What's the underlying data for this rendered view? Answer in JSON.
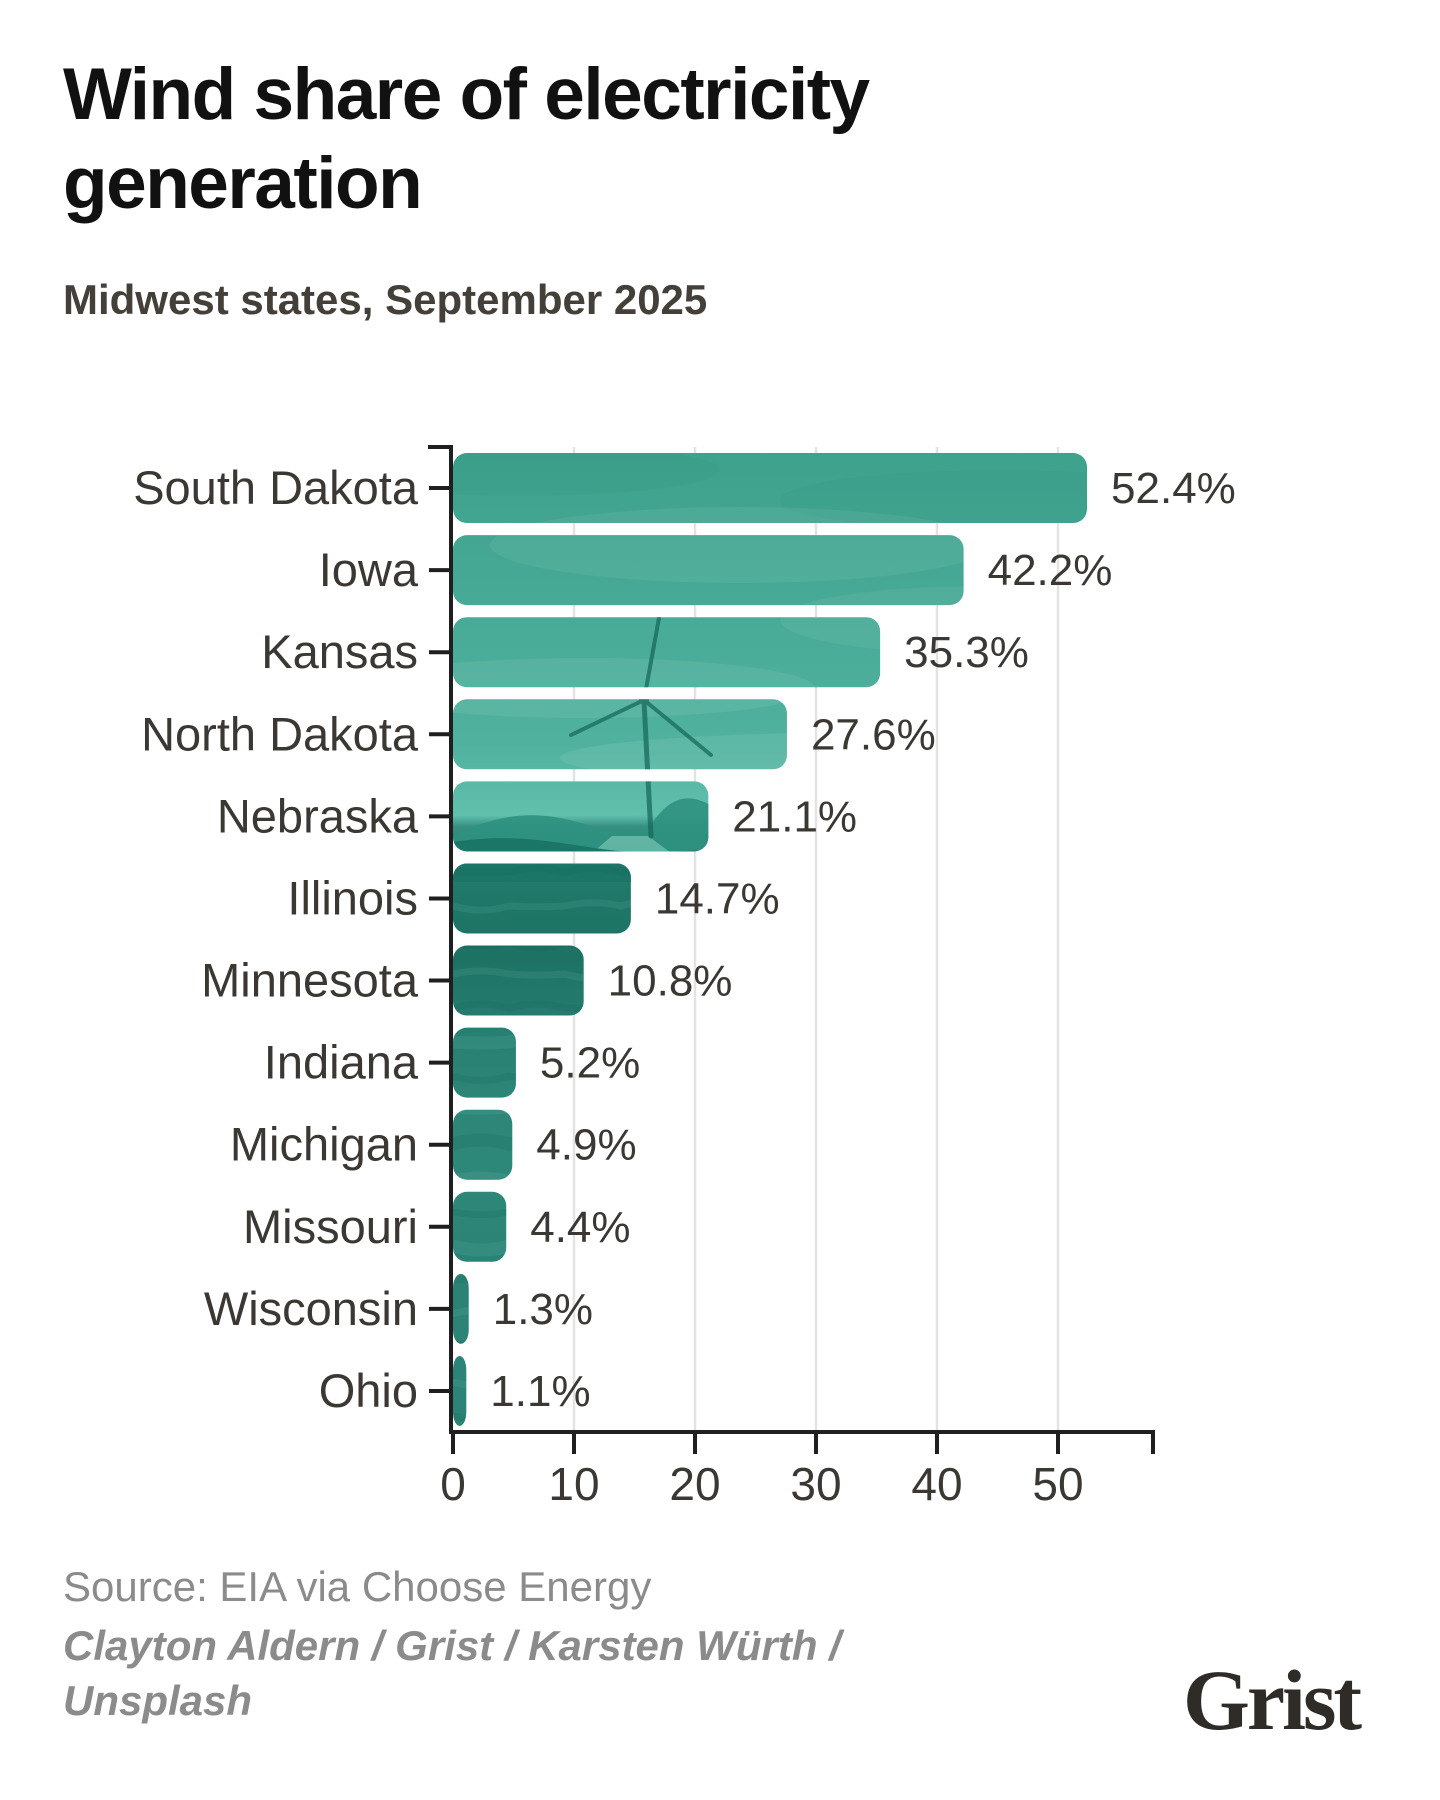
{
  "header": {
    "title": "Wind share of electricity generation",
    "subtitle": "Midwest states, September 2025"
  },
  "footer": {
    "source": "Source: EIA via Choose Energy",
    "credit": "Clayton Aldern / Grist / Karsten Würth / Unsplash",
    "logo": "Grist"
  },
  "colors": {
    "accent_teal": "#42a48f",
    "sky_teal_light": "#5fbfab",
    "ground_teal_dark": "#1d7264",
    "axis": "#1f1f1f",
    "gridline": "#e3e3e3",
    "label_text": "#3b3833",
    "title_text": "#111111",
    "subtitle_text": "#444039",
    "footer_text": "#8b8b8b",
    "logo_text": "#2f2b26"
  },
  "chart_data": {
    "type": "bar",
    "orientation": "horizontal",
    "title": "Wind share of electricity generation",
    "subtitle": "Midwest states, September 2025",
    "categories": [
      "South Dakota",
      "Iowa",
      "Kansas",
      "North Dakota",
      "Nebraska",
      "Illinois",
      "Minnesota",
      "Indiana",
      "Michigan",
      "Missouri",
      "Wisconsin",
      "Ohio"
    ],
    "values": [
      52.4,
      42.2,
      35.3,
      27.6,
      21.1,
      14.7,
      10.8,
      5.2,
      4.9,
      4.4,
      1.3,
      1.1
    ],
    "value_labels": [
      "52.4%",
      "42.2%",
      "35.3%",
      "27.6%",
      "21.1%",
      "14.7%",
      "10.8%",
      "5.2%",
      "4.9%",
      "4.4%",
      "1.3%",
      "1.1%"
    ],
    "unit": "%",
    "x_ticks": [
      0,
      10,
      20,
      30,
      40,
      50
    ],
    "xlim": [
      0,
      58
    ],
    "grid": true,
    "legend_position": "none",
    "bar_style": "teal wind-turbine landscape photo masked inside rounded bars"
  }
}
